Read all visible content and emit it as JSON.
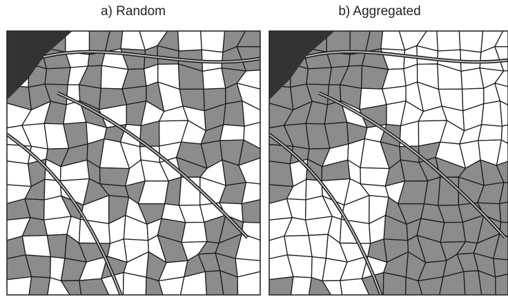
{
  "panels": [
    {
      "title": "a) Random"
    },
    {
      "title": "b) Aggregated"
    }
  ]
}
